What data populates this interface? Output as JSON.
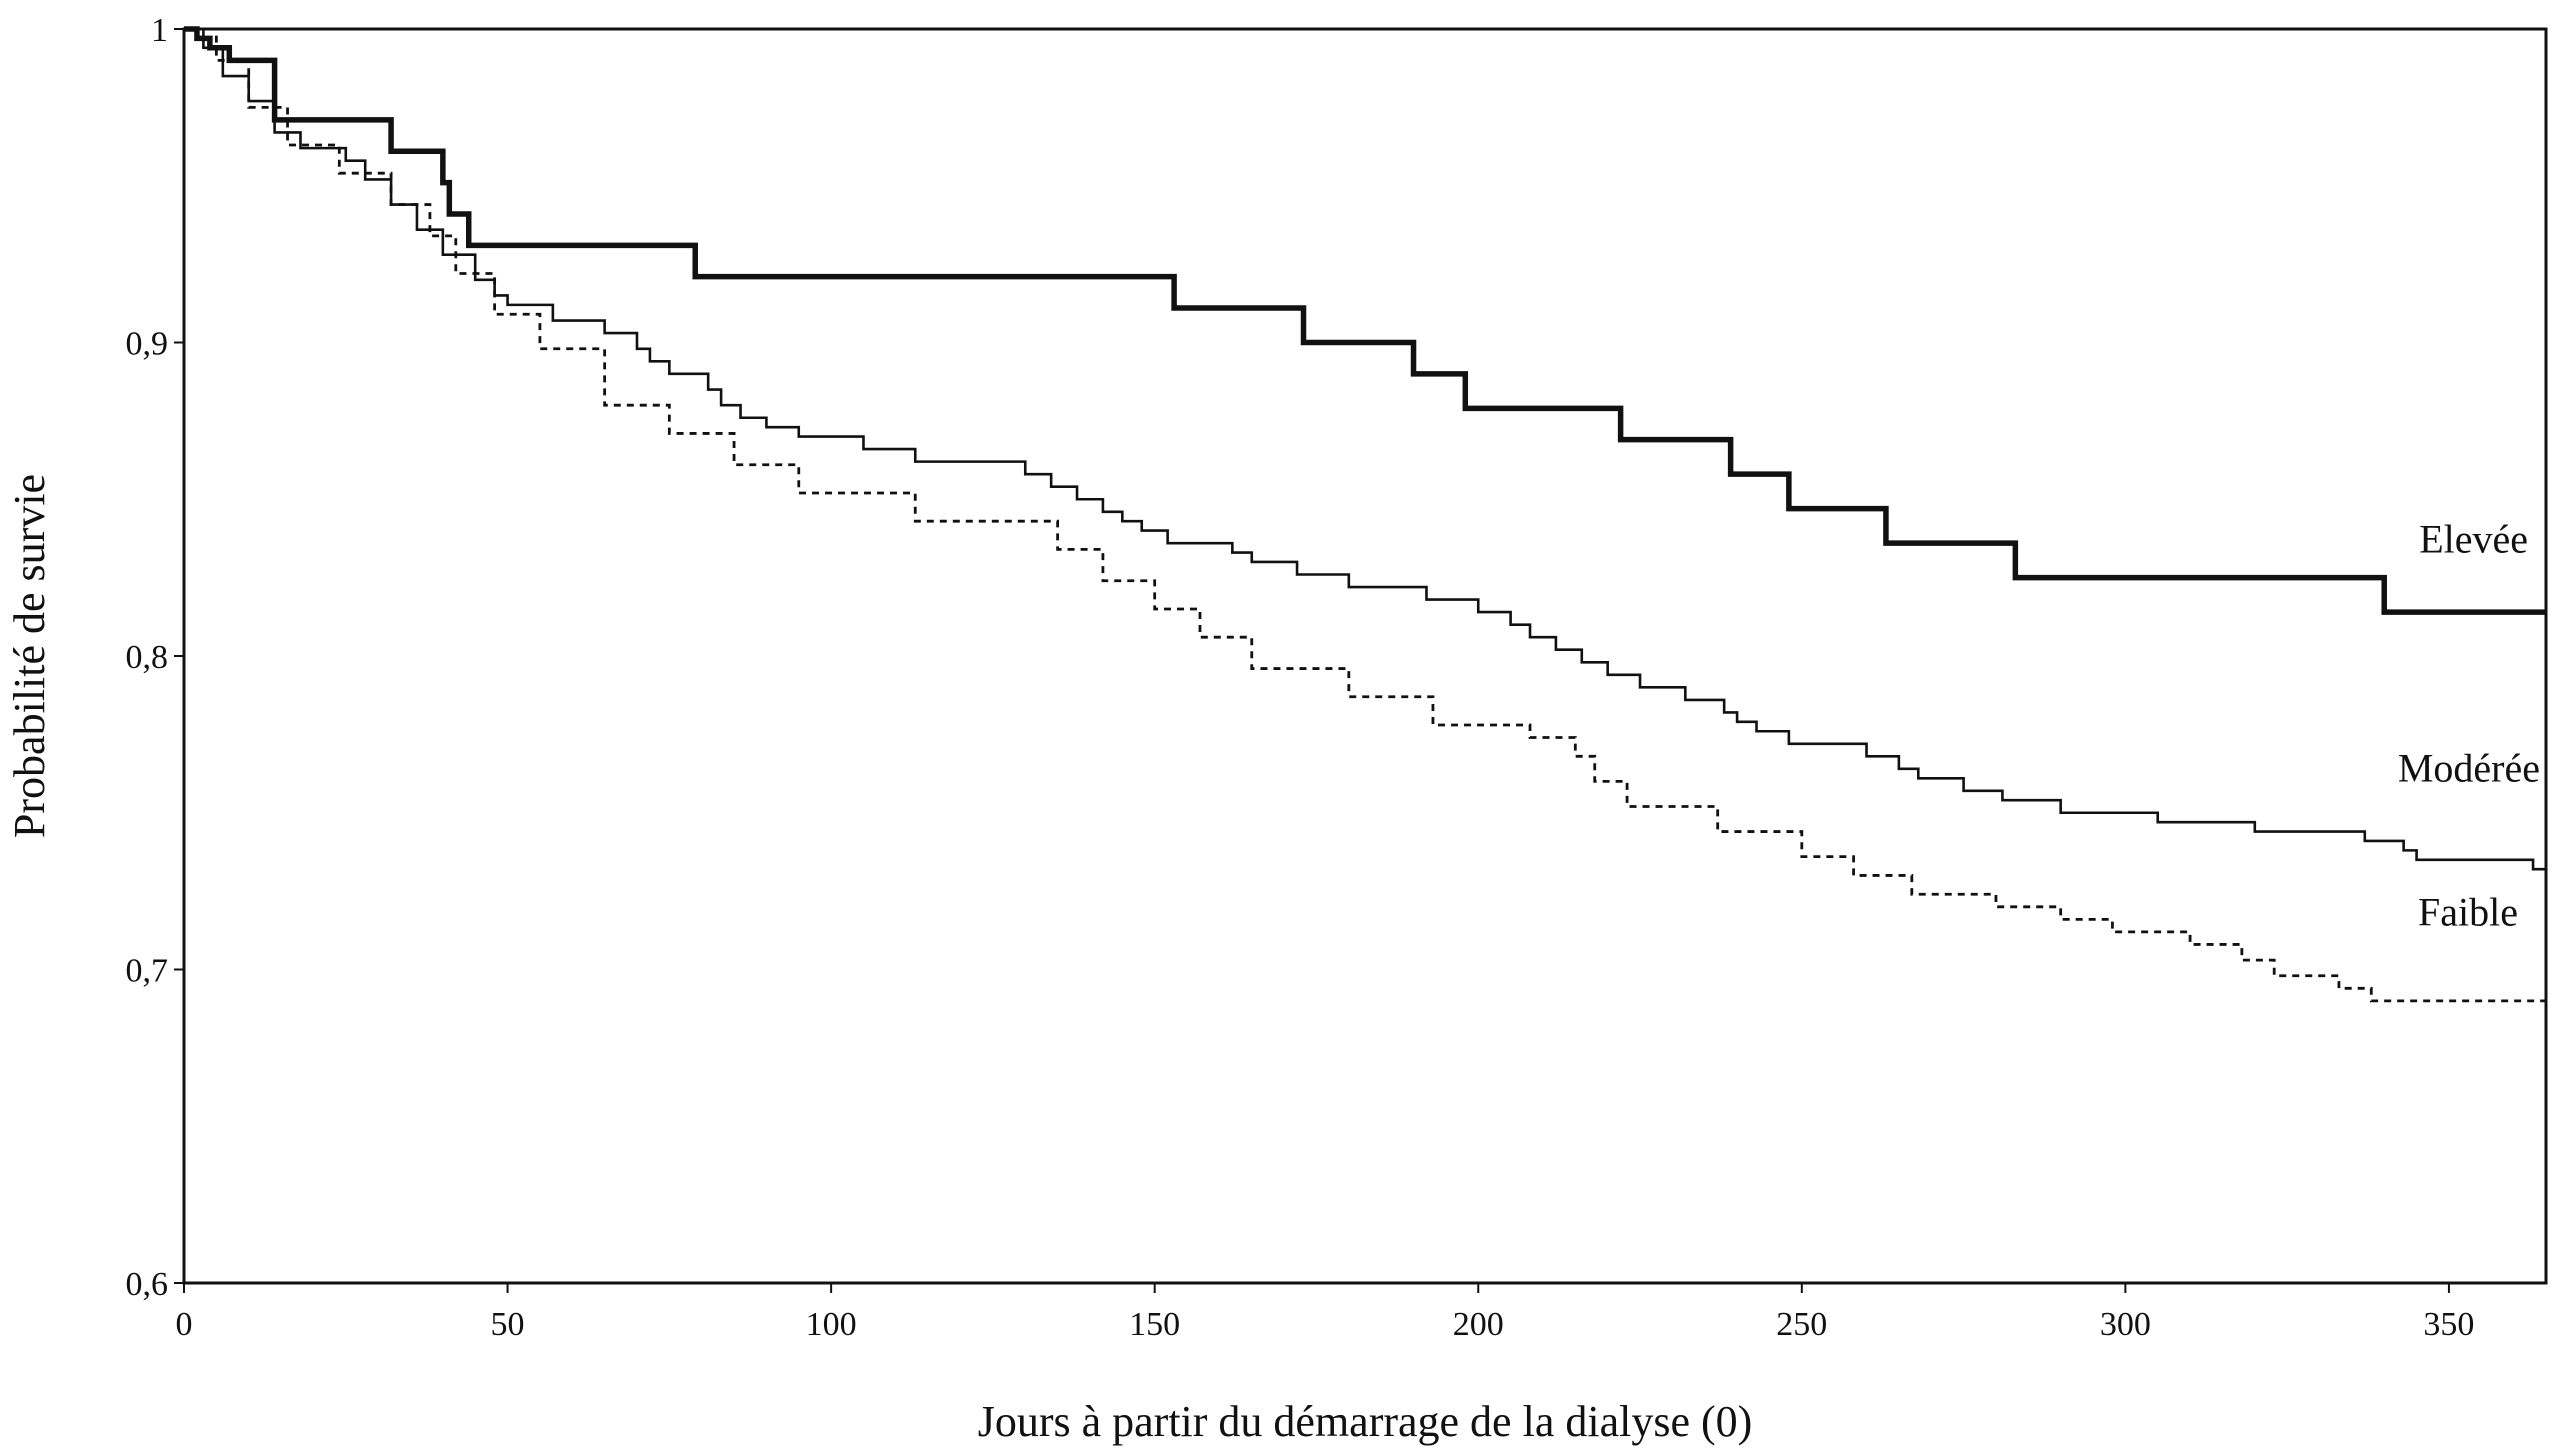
{
  "chart_data": {
    "type": "line",
    "title": "",
    "xlabel": "Jours à partir du démarrage de la dialyse (0)",
    "ylabel": "Probabilité de survie",
    "xlim": [
      0,
      365
    ],
    "ylim": [
      0.6,
      1.0
    ],
    "xticks": [
      0,
      50,
      100,
      150,
      200,
      250,
      300,
      350
    ],
    "xtick_labels": [
      "0",
      "50",
      "100",
      "150",
      "200",
      "250",
      "300",
      "350"
    ],
    "yticks": [
      0.6,
      0.7,
      0.8,
      0.9,
      1.0
    ],
    "ytick_labels": [
      "0,6",
      "0,7",
      "0,8",
      "0,9",
      "1"
    ],
    "grid": false,
    "legend": "none",
    "step": true,
    "series": [
      {
        "name": "Elevée",
        "color": "#111111",
        "style": "thick",
        "x": [
          0,
          2,
          4,
          7,
          14,
          32,
          40,
          41,
          44,
          79,
          153,
          173,
          190,
          198,
          222,
          239,
          248,
          263,
          283,
          340,
          365
        ],
        "y": [
          1.0,
          0.997,
          0.994,
          0.99,
          0.971,
          0.961,
          0.951,
          0.941,
          0.931,
          0.921,
          0.911,
          0.9,
          0.89,
          0.879,
          0.869,
          0.858,
          0.847,
          0.836,
          0.825,
          0.814,
          0.814
        ]
      },
      {
        "name": "Modérée",
        "color": "#111111",
        "style": "medium",
        "x": [
          0,
          3,
          6,
          10,
          14,
          18,
          25,
          28,
          32,
          36,
          40,
          45,
          48,
          50,
          57,
          65,
          70,
          72,
          75,
          81,
          83,
          86,
          90,
          95,
          105,
          113,
          130,
          134,
          138,
          142,
          145,
          148,
          152,
          162,
          165,
          172,
          180,
          192,
          200,
          205,
          208,
          212,
          216,
          220,
          225,
          232,
          238,
          240,
          243,
          248,
          260,
          265,
          268,
          275,
          281,
          290,
          305,
          320,
          337,
          343,
          345,
          363,
          365
        ],
        "y": [
          1.0,
          0.994,
          0.985,
          0.977,
          0.967,
          0.962,
          0.958,
          0.952,
          0.944,
          0.936,
          0.928,
          0.92,
          0.915,
          0.912,
          0.907,
          0.903,
          0.898,
          0.894,
          0.89,
          0.885,
          0.88,
          0.876,
          0.873,
          0.87,
          0.866,
          0.862,
          0.858,
          0.854,
          0.85,
          0.846,
          0.843,
          0.84,
          0.836,
          0.833,
          0.83,
          0.826,
          0.822,
          0.818,
          0.814,
          0.81,
          0.806,
          0.802,
          0.798,
          0.794,
          0.79,
          0.786,
          0.782,
          0.779,
          0.776,
          0.772,
          0.768,
          0.764,
          0.761,
          0.757,
          0.754,
          0.75,
          0.747,
          0.744,
          0.741,
          0.738,
          0.735,
          0.732,
          0.732
        ]
      },
      {
        "name": "Faible",
        "color": "#111111",
        "style": "dotted",
        "x": [
          0,
          5,
          10,
          16,
          24,
          32,
          38,
          42,
          48,
          55,
          65,
          75,
          85,
          95,
          113,
          135,
          142,
          150,
          157,
          165,
          180,
          193,
          208,
          215,
          218,
          223,
          237,
          250,
          258,
          267,
          280,
          290,
          298,
          310,
          318,
          323,
          333,
          338,
          345,
          350,
          358,
          363,
          365
        ],
        "y": [
          1.0,
          0.99,
          0.975,
          0.963,
          0.954,
          0.944,
          0.934,
          0.922,
          0.909,
          0.898,
          0.88,
          0.871,
          0.861,
          0.852,
          0.843,
          0.834,
          0.824,
          0.815,
          0.806,
          0.796,
          0.787,
          0.778,
          0.774,
          0.768,
          0.76,
          0.752,
          0.744,
          0.736,
          0.73,
          0.724,
          0.72,
          0.716,
          0.712,
          0.708,
          0.703,
          0.698,
          0.694,
          0.69,
          0.69,
          0.69,
          0.69,
          0.69,
          0.69
        ]
      }
    ]
  }
}
